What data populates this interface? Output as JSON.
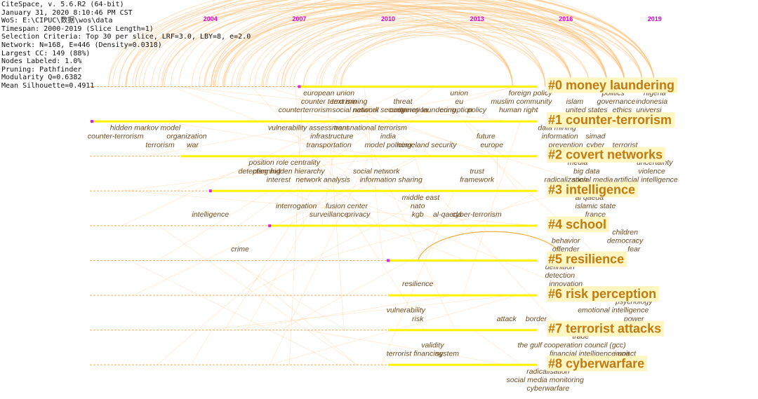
{
  "info": [
    "CiteSpace, v. 5.6.R2 (64-bit)",
    "January 31, 2020 8:10:46 PM CST",
    "WoS: E:\\CIPUC\\数据\\wos\\data",
    "Timespan: 2000-2019 (Slice Length=1)",
    "Selection Criteria: Top 30 per slice, LRF=3.0, LBY=8, e=2.0",
    "Network: N=168, E=446 (Density=0.0318)",
    "Largest CC: 149 (88%)",
    "Nodes Labeled: 1.0%",
    "Pruning: Pathfinder",
    "Modularity Q=0.6382",
    "Mean Silhouette=0.4911"
  ],
  "years": [
    "2004",
    "2007",
    "2010",
    "2013",
    "2016",
    "2019"
  ],
  "colors": {
    "year": "#d600d6",
    "cluster_text": "#c07a10",
    "cluster_bg": "#fff6c2",
    "line": "#fff200",
    "arc": "#ffc27a",
    "term": "#6e4a1e"
  },
  "clusters": [
    {
      "label": "#0 money laundering",
      "start": "2007",
      "end": "2019"
    },
    {
      "label": "#1 counter-terrorism",
      "start": "2000",
      "end": "2019"
    },
    {
      "label": "#2 covert networks",
      "start": "2003",
      "end": "2019"
    },
    {
      "label": "#3 intelligence",
      "start": "2004",
      "end": "2019"
    },
    {
      "label": "#4 school",
      "start": "2006",
      "end": "2019"
    },
    {
      "label": "#5 resilience",
      "start": "2010",
      "end": "2019"
    },
    {
      "label": "#6 risk perception",
      "start": "2010",
      "end": "2019"
    },
    {
      "label": "#7 terrorist attacks",
      "start": "2010",
      "end": "2019"
    },
    {
      "label": "#8 cyberwarfare",
      "start": "2010",
      "end": "2019"
    }
  ],
  "terms": [
    {
      "text": "european union",
      "row": 0,
      "year": 2008.0,
      "dy": 0
    },
    {
      "text": "counter terrorism",
      "row": 0,
      "year": 2008.0,
      "dy": 1
    },
    {
      "text": "counterterrorism",
      "row": 0,
      "year": 2007.2,
      "dy": 2
    },
    {
      "text": "text mining",
      "row": 0,
      "year": 2008.7,
      "dy": 1
    },
    {
      "text": "social network",
      "row": 0,
      "year": 2008.9,
      "dy": 2
    },
    {
      "text": "national security",
      "row": 0,
      "year": 2009.7,
      "dy": 2
    },
    {
      "text": "threat",
      "row": 0,
      "year": 2010.5,
      "dy": 1
    },
    {
      "text": "cooperation",
      "row": 0,
      "year": 2010.7,
      "dy": 2
    },
    {
      "text": "money laundering",
      "row": 0,
      "year": 2011.3,
      "dy": 2
    },
    {
      "text": "union",
      "row": 0,
      "year": 2012.4,
      "dy": 0
    },
    {
      "text": "eu",
      "row": 0,
      "year": 2012.4,
      "dy": 1
    },
    {
      "text": "corruption",
      "row": 0,
      "year": 2012.3,
      "dy": 2
    },
    {
      "text": "policy",
      "row": 0,
      "year": 2013.0,
      "dy": 2
    },
    {
      "text": "foreign policy",
      "row": 0,
      "year": 2014.8,
      "dy": 0
    },
    {
      "text": "muslim community",
      "row": 0,
      "year": 2014.5,
      "dy": 1
    },
    {
      "text": "human right",
      "row": 0,
      "year": 2014.4,
      "dy": 2
    },
    {
      "text": "islam",
      "row": 0,
      "year": 2016.3,
      "dy": 1
    },
    {
      "text": "united states",
      "row": 0,
      "year": 2016.7,
      "dy": 2
    },
    {
      "text": "politics",
      "row": 0,
      "year": 2017.6,
      "dy": 0
    },
    {
      "text": "governance",
      "row": 0,
      "year": 2017.7,
      "dy": 1
    },
    {
      "text": "ethics",
      "row": 0,
      "year": 2017.9,
      "dy": 2
    },
    {
      "text": "nigeria",
      "row": 0,
      "year": 2019.0,
      "dy": 0
    },
    {
      "text": "indonesia",
      "row": 0,
      "year": 2018.9,
      "dy": 1
    },
    {
      "text": "universi",
      "row": 0,
      "year": 2018.8,
      "dy": 2
    },
    {
      "text": "hidden markov model",
      "row": 1,
      "year": 2001.8,
      "dy": 0
    },
    {
      "text": "counter-terrorism",
      "row": 1,
      "year": 2000.8,
      "dy": 1
    },
    {
      "text": "organization",
      "row": 1,
      "year": 2003.2,
      "dy": 1
    },
    {
      "text": "terrorism",
      "row": 1,
      "year": 2002.3,
      "dy": 2
    },
    {
      "text": "war",
      "row": 1,
      "year": 2003.4,
      "dy": 2
    },
    {
      "text": "vulnerability assessment",
      "row": 1,
      "year": 2007.3,
      "dy": 0
    },
    {
      "text": "transnational terrorism",
      "row": 1,
      "year": 2009.4,
      "dy": 0
    },
    {
      "text": "infrastructure",
      "row": 1,
      "year": 2008.1,
      "dy": 1
    },
    {
      "text": "transportation",
      "row": 1,
      "year": 2008.0,
      "dy": 2
    },
    {
      "text": "india",
      "row": 1,
      "year": 2010.0,
      "dy": 1
    },
    {
      "text": "model policing",
      "row": 1,
      "year": 2010.0,
      "dy": 2
    },
    {
      "text": "homeland security",
      "row": 1,
      "year": 2011.3,
      "dy": 2
    },
    {
      "text": "future",
      "row": 1,
      "year": 2013.3,
      "dy": 1
    },
    {
      "text": "europe",
      "row": 1,
      "year": 2013.5,
      "dy": 2
    },
    {
      "text": "data mining",
      "row": 1,
      "year": 2015.7,
      "dy": 0
    },
    {
      "text": "information",
      "row": 1,
      "year": 2015.8,
      "dy": 1
    },
    {
      "text": "simad",
      "row": 1,
      "year": 2017.0,
      "dy": 1
    },
    {
      "text": "prevention",
      "row": 1,
      "year": 2016.0,
      "dy": 2
    },
    {
      "text": "cyber",
      "row": 1,
      "year": 2017.0,
      "dy": 2
    },
    {
      "text": "terrorist",
      "row": 1,
      "year": 2018.0,
      "dy": 2
    },
    {
      "text": "position role centrality",
      "row": 2,
      "year": 2006.5,
      "dy": 0
    },
    {
      "text": "detecting hidden hierarchy",
      "row": 2,
      "year": 2006.4,
      "dy": 1
    },
    {
      "text": "planning",
      "row": 2,
      "year": 2005.9,
      "dy": 1
    },
    {
      "text": "social network",
      "row": 2,
      "year": 2009.6,
      "dy": 1
    },
    {
      "text": "interest",
      "row": 2,
      "year": 2006.3,
      "dy": 2
    },
    {
      "text": "network analysis",
      "row": 2,
      "year": 2007.8,
      "dy": 2
    },
    {
      "text": "information sharing",
      "row": 2,
      "year": 2010.1,
      "dy": 2
    },
    {
      "text": "trust",
      "row": 2,
      "year": 2013.0,
      "dy": 1
    },
    {
      "text": "framework",
      "row": 2,
      "year": 2013.0,
      "dy": 2
    },
    {
      "text": "media",
      "row": 2,
      "year": 2016.4,
      "dy": 0
    },
    {
      "text": "big data",
      "row": 2,
      "year": 2016.7,
      "dy": 1
    },
    {
      "text": "radicalization",
      "row": 2,
      "year": 2016.0,
      "dy": 2
    },
    {
      "text": "social media",
      "row": 2,
      "year": 2016.9,
      "dy": 2
    },
    {
      "text": "artificial intelligence",
      "row": 2,
      "year": 2018.7,
      "dy": 2
    },
    {
      "text": "uncertainty",
      "row": 2,
      "year": 2019.0,
      "dy": 0
    },
    {
      "text": "violence",
      "row": 2,
      "year": 2018.9,
      "dy": 1
    },
    {
      "text": "interrogation",
      "row": 3,
      "year": 2006.9,
      "dy": 1
    },
    {
      "text": "fusion center",
      "row": 3,
      "year": 2008.6,
      "dy": 1
    },
    {
      "text": "surveillance",
      "row": 3,
      "year": 2008.0,
      "dy": 2
    },
    {
      "text": "privacy",
      "row": 3,
      "year": 2009.0,
      "dy": 2
    },
    {
      "text": "middle east",
      "row": 3,
      "year": 2011.1,
      "dy": 0
    },
    {
      "text": "nato",
      "row": 3,
      "year": 2011.0,
      "dy": 1
    },
    {
      "text": "kgb",
      "row": 3,
      "year": 2011.0,
      "dy": 2
    },
    {
      "text": "al-qaeda",
      "row": 3,
      "year": 2012.0,
      "dy": 2
    },
    {
      "text": "cyber-terrorism",
      "row": 3,
      "year": 2013.0,
      "dy": 2
    },
    {
      "text": "al qaeda",
      "row": 3,
      "year": 2016.8,
      "dy": 0
    },
    {
      "text": "islamic state",
      "row": 3,
      "year": 2017.0,
      "dy": 1
    },
    {
      "text": "france",
      "row": 3,
      "year": 2017.0,
      "dy": 2
    },
    {
      "text": "intelligence",
      "row": 3,
      "year": 2004.0,
      "dy": 2
    },
    {
      "text": "crime",
      "row": 4,
      "year": 2005.0,
      "dy": 2
    },
    {
      "text": "behavior",
      "row": 4,
      "year": 2016.0,
      "dy": 1
    },
    {
      "text": "offender",
      "row": 4,
      "year": 2016.0,
      "dy": 2
    },
    {
      "text": "children",
      "row": 4,
      "year": 2018.0,
      "dy": 0
    },
    {
      "text": "democracy",
      "row": 4,
      "year": 2018.0,
      "dy": 1
    },
    {
      "text": "fear",
      "row": 4,
      "year": 2018.3,
      "dy": 2
    },
    {
      "text": "definition",
      "row": 5,
      "year": 2015.8,
      "dy": 0
    },
    {
      "text": "detection",
      "row": 5,
      "year": 2015.8,
      "dy": 1
    },
    {
      "text": "innovation",
      "row": 5,
      "year": 2016.0,
      "dy": 2
    },
    {
      "text": "resilience",
      "row": 5,
      "year": 2011.0,
      "dy": 2
    },
    {
      "text": "psychology",
      "row": 6,
      "year": 2018.3,
      "dy": 0
    },
    {
      "text": "emotional intelligence",
      "row": 6,
      "year": 2017.6,
      "dy": 1
    },
    {
      "text": "vulnerability",
      "row": 6,
      "year": 2010.6,
      "dy": 1
    },
    {
      "text": "risk",
      "row": 6,
      "year": 2011.0,
      "dy": 2
    },
    {
      "text": "attack",
      "row": 6,
      "year": 2014.0,
      "dy": 2
    },
    {
      "text": "border",
      "row": 6,
      "year": 2015.0,
      "dy": 2
    },
    {
      "text": "power",
      "row": 6,
      "year": 2018.3,
      "dy": 2
    },
    {
      "text": "trade",
      "row": 7,
      "year": 2016.5,
      "dy": 0
    },
    {
      "text": "validity",
      "row": 7,
      "year": 2011.5,
      "dy": 1
    },
    {
      "text": "the gulf cooperation council (gcc)",
      "row": 7,
      "year": 2016.2,
      "dy": 1
    },
    {
      "text": "terrorist financing",
      "row": 7,
      "year": 2010.9,
      "dy": 2
    },
    {
      "text": "system",
      "row": 7,
      "year": 2012.0,
      "dy": 2
    },
    {
      "text": "financial intelligence unit",
      "row": 7,
      "year": 2016.8,
      "dy": 2
    },
    {
      "text": "impact",
      "row": 7,
      "year": 2018.0,
      "dy": 2
    },
    {
      "text": "radicalisation",
      "row": 8,
      "year": 2015.4,
      "dy": 0
    },
    {
      "text": "social media monitoring",
      "row": 8,
      "year": 2015.3,
      "dy": 1
    },
    {
      "text": "cyberwarfare",
      "row": 8,
      "year": 2015.4,
      "dy": 2
    }
  ]
}
